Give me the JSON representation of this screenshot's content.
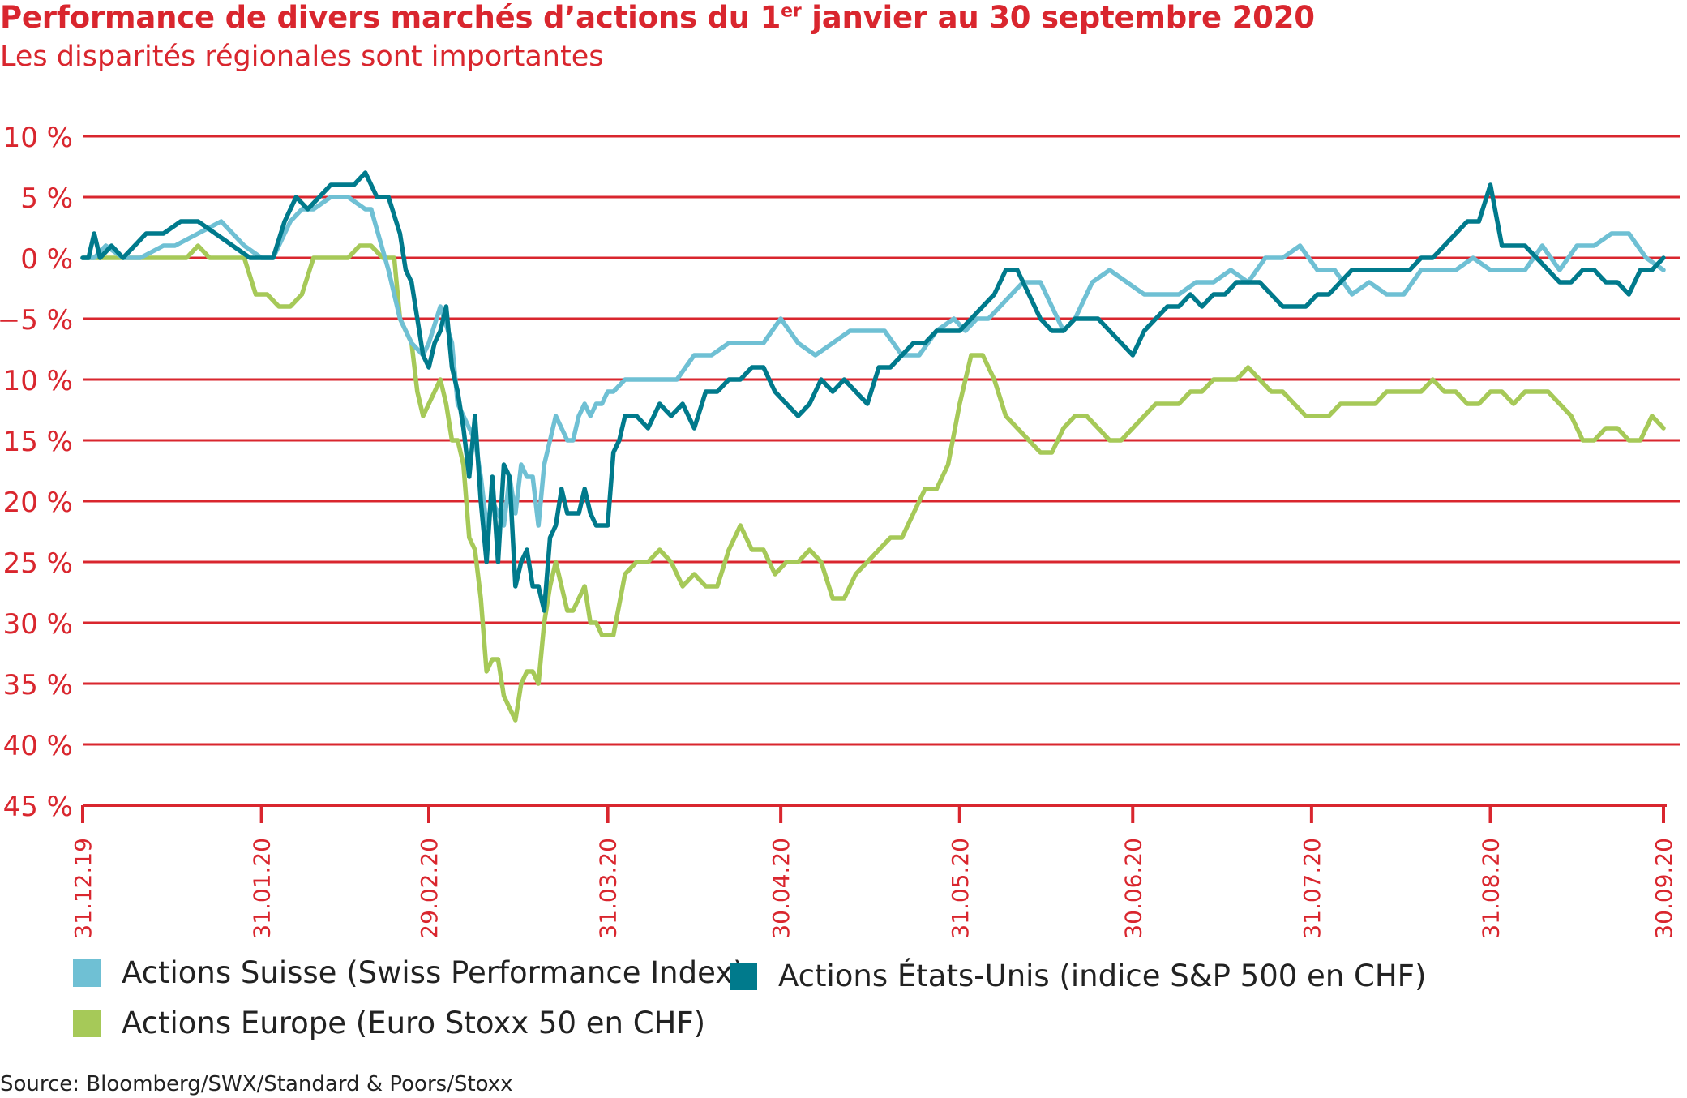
{
  "title": "Performance de divers marchés d’actions du 1",
  "title_sup": "er",
  "title_rest": " janvier au 30 septembre 2020",
  "subtitle": "Les disparités régionales sont importantes",
  "source": "Source: Bloomberg/SWX/Standard & Poors/Stoxx",
  "colors": {
    "accent": "#d9262e",
    "swiss": "#6fc0d4",
    "us": "#007a8c",
    "europe": "#a6c958"
  },
  "chart_data": {
    "type": "line",
    "ylim": [
      -45,
      10
    ],
    "y_ticks": [
      10,
      5,
      0,
      -5,
      -10,
      -15,
      -20,
      -25,
      -30,
      -35,
      -40,
      -45
    ],
    "y_tick_labels": [
      "10 %",
      "5 %",
      "0 %",
      "−5 %",
      "−10 %",
      "−15 %",
      "−20 %",
      "−25 %",
      "−30 %",
      "−35 %",
      "−40 %",
      "−45 %"
    ],
    "x_tick_labels": [
      "31.12.19",
      "31.01.20",
      "29.02.20",
      "31.03.20",
      "30.04.20",
      "31.05.20",
      "30.06.20",
      "31.07.20",
      "31.08.20",
      "30.09.20"
    ],
    "x_tick_days": [
      0,
      31,
      60,
      91,
      121,
      152,
      182,
      213,
      244,
      274
    ],
    "grid": true,
    "legend_position": "bottom",
    "series": [
      {
        "name": "Actions Suisse (Swiss Performance Index)",
        "color": "#6fc0d4",
        "x": [
          0,
          2,
          4,
          7,
          10,
          14,
          16,
          20,
          24,
          28,
          31,
          33,
          36,
          38,
          40,
          43,
          46,
          49,
          50,
          53,
          55,
          57,
          59,
          60,
          62,
          64,
          65,
          67,
          68,
          69,
          70,
          71,
          73,
          74,
          75,
          76,
          77,
          78,
          79,
          80,
          81,
          82,
          83,
          84,
          85,
          86,
          87,
          88,
          89,
          90,
          91,
          92,
          94,
          96,
          98,
          100,
          103,
          106,
          109,
          112,
          115,
          118,
          121,
          124,
          127,
          130,
          133,
          136,
          139,
          142,
          145,
          148,
          151,
          153,
          155,
          157,
          159,
          161,
          163,
          164,
          166,
          168,
          170,
          172,
          175,
          178,
          181,
          184,
          187,
          190,
          193,
          196,
          199,
          202,
          205,
          208,
          211,
          214,
          217,
          220,
          223,
          226,
          229,
          232,
          235,
          238,
          241,
          244,
          247,
          250,
          253,
          256,
          259,
          262,
          265,
          268,
          271,
          274
        ],
        "values": [
          0,
          0,
          1,
          0,
          0,
          1,
          1,
          2,
          3,
          1,
          0,
          0,
          3,
          4,
          4,
          5,
          5,
          4,
          4,
          -1,
          -5,
          -7,
          -8,
          -7,
          -4,
          -7,
          -12,
          -14,
          -15,
          -18,
          -22,
          -20,
          -22,
          -18,
          -21,
          -17,
          -18,
          -18,
          -22,
          -17,
          -15,
          -13,
          -14,
          -15,
          -15,
          -13,
          -12,
          -13,
          -12,
          -12,
          -11,
          -11,
          -10,
          -10,
          -10,
          -10,
          -10,
          -8,
          -8,
          -7,
          -7,
          -7,
          -5,
          -7,
          -8,
          -7,
          -6,
          -6,
          -6,
          -8,
          -8,
          -6,
          -5,
          -6,
          -5,
          -5,
          -4,
          -3,
          -2,
          -2,
          -2,
          -4,
          -6,
          -5,
          -2,
          -1,
          -2,
          -3,
          -3,
          -3,
          -2,
          -2,
          -1,
          -2,
          0,
          0,
          1,
          -1,
          -1,
          -3,
          -2,
          -3,
          -3,
          -1,
          -1,
          -1,
          0,
          -1,
          -1,
          -1,
          1,
          -1,
          1,
          1,
          2,
          2,
          0,
          -1
        ]
      },
      {
        "name": "Actions États-Unis (indice S&P 500 en CHF)",
        "color": "#007a8c",
        "x": [
          0,
          1,
          2,
          3,
          5,
          7,
          9,
          11,
          14,
          17,
          20,
          23,
          26,
          29,
          31,
          33,
          35,
          37,
          39,
          41,
          43,
          45,
          47,
          49,
          51,
          53,
          55,
          56,
          57,
          58,
          59,
          60,
          61,
          62,
          63,
          64,
          65,
          66,
          67,
          68,
          69,
          70,
          71,
          72,
          73,
          74,
          75,
          76,
          77,
          78,
          79,
          80,
          81,
          82,
          83,
          84,
          85,
          86,
          87,
          88,
          89,
          90,
          91,
          92,
          93,
          94,
          96,
          98,
          100,
          102,
          104,
          106,
          108,
          110,
          112,
          114,
          116,
          118,
          120,
          122,
          124,
          126,
          128,
          130,
          132,
          134,
          136,
          138,
          140,
          142,
          144,
          146,
          148,
          150,
          152,
          154,
          156,
          158,
          160,
          162,
          164,
          166,
          168,
          170,
          172,
          174,
          176,
          178,
          180,
          182,
          184,
          186,
          188,
          190,
          192,
          194,
          196,
          198,
          200,
          202,
          204,
          206,
          208,
          210,
          212,
          214,
          216,
          218,
          220,
          222,
          224,
          226,
          228,
          230,
          232,
          234,
          236,
          238,
          240,
          242,
          244,
          246,
          248,
          250,
          252,
          254,
          256,
          258,
          260,
          262,
          264,
          266,
          268,
          270,
          272,
          274
        ],
        "values": [
          0,
          0,
          2,
          0,
          1,
          0,
          1,
          2,
          2,
          3,
          3,
          2,
          1,
          0,
          0,
          0,
          3,
          5,
          4,
          5,
          6,
          6,
          6,
          7,
          5,
          5,
          2,
          -1,
          -2,
          -5,
          -8,
          -9,
          -7,
          -6,
          -4,
          -9,
          -11,
          -14,
          -18,
          -13,
          -20,
          -25,
          -18,
          -25,
          -17,
          -18,
          -27,
          -25,
          -24,
          -27,
          -27,
          -29,
          -23,
          -22,
          -19,
          -21,
          -21,
          -21,
          -19,
          -21,
          -22,
          -22,
          -22,
          -16,
          -15,
          -13,
          -13,
          -14,
          -12,
          -13,
          -12,
          -14,
          -11,
          -11,
          -10,
          -10,
          -9,
          -9,
          -11,
          -12,
          -13,
          -12,
          -10,
          -11,
          -10,
          -11,
          -12,
          -9,
          -9,
          -8,
          -7,
          -7,
          -6,
          -6,
          -6,
          -5,
          -4,
          -3,
          -1,
          -1,
          -3,
          -5,
          -6,
          -6,
          -5,
          -5,
          -5,
          -6,
          -7,
          -8,
          -6,
          -5,
          -4,
          -4,
          -3,
          -4,
          -3,
          -3,
          -2,
          -2,
          -2,
          -3,
          -4,
          -4,
          -4,
          -3,
          -3,
          -2,
          -1,
          -1,
          -1,
          -1,
          -1,
          -1,
          0,
          0,
          1,
          2,
          3,
          3,
          6,
          1,
          1,
          1,
          0,
          -1,
          -2,
          -2,
          -1,
          -1,
          -2,
          -2,
          -3,
          -1,
          -1,
          0
        ]
      },
      {
        "name": "Actions Europe (Euro Stoxx 50 en CHF)",
        "color": "#a6c958",
        "x": [
          0,
          2,
          4,
          6,
          8,
          10,
          12,
          14,
          16,
          18,
          20,
          22,
          24,
          26,
          28,
          30,
          32,
          34,
          36,
          38,
          40,
          42,
          44,
          46,
          48,
          50,
          52,
          54,
          55,
          56,
          57,
          58,
          59,
          60,
          61,
          62,
          63,
          64,
          65,
          66,
          67,
          68,
          69,
          70,
          71,
          72,
          73,
          74,
          75,
          76,
          77,
          78,
          79,
          80,
          81,
          82,
          83,
          84,
          85,
          86,
          87,
          88,
          89,
          90,
          91,
          92,
          94,
          96,
          98,
          100,
          102,
          104,
          106,
          108,
          110,
          112,
          114,
          116,
          118,
          120,
          122,
          124,
          126,
          128,
          130,
          132,
          134,
          136,
          138,
          140,
          142,
          144,
          146,
          148,
          150,
          152,
          154,
          156,
          158,
          160,
          162,
          164,
          166,
          168,
          170,
          172,
          174,
          176,
          178,
          180,
          182,
          184,
          186,
          188,
          190,
          192,
          194,
          196,
          198,
          200,
          202,
          204,
          206,
          208,
          210,
          212,
          214,
          216,
          218,
          220,
          222,
          224,
          226,
          228,
          230,
          232,
          234,
          236,
          238,
          240,
          242,
          244,
          246,
          248,
          250,
          252,
          254,
          256,
          258,
          260,
          262,
          264,
          266,
          268,
          270,
          272,
          274
        ],
        "values": [
          0,
          0,
          0,
          0,
          0,
          0,
          0,
          0,
          0,
          0,
          1,
          0,
          0,
          0,
          0,
          -3,
          -3,
          -4,
          -4,
          -3,
          0,
          0,
          0,
          0,
          1,
          1,
          0,
          0,
          -5,
          -6,
          -7,
          -11,
          -13,
          -12,
          -11,
          -10,
          -12,
          -15,
          -15,
          -17,
          -23,
          -24,
          -28,
          -34,
          -33,
          -33,
          -36,
          -37,
          -38,
          -35,
          -34,
          -34,
          -35,
          -30,
          -27,
          -25,
          -27,
          -29,
          -29,
          -28,
          -27,
          -30,
          -30,
          -31,
          -31,
          -31,
          -26,
          -25,
          -25,
          -24,
          -25,
          -27,
          -26,
          -27,
          -27,
          -24,
          -22,
          -24,
          -24,
          -26,
          -25,
          -25,
          -24,
          -25,
          -28,
          -28,
          -26,
          -25,
          -24,
          -23,
          -23,
          -21,
          -19,
          -19,
          -17,
          -12,
          -8,
          -8,
          -10,
          -13,
          -14,
          -15,
          -16,
          -16,
          -14,
          -13,
          -13,
          -14,
          -15,
          -15,
          -14,
          -13,
          -12,
          -12,
          -12,
          -11,
          -11,
          -10,
          -10,
          -10,
          -9,
          -10,
          -11,
          -11,
          -12,
          -13,
          -13,
          -13,
          -12,
          -12,
          -12,
          -12,
          -11,
          -11,
          -11,
          -11,
          -10,
          -11,
          -11,
          -12,
          -12,
          -11,
          -11,
          -12,
          -11,
          -11,
          -11,
          -12,
          -13,
          -15,
          -15,
          -14,
          -14,
          -15,
          -15,
          -13,
          -14
        ]
      }
    ]
  }
}
